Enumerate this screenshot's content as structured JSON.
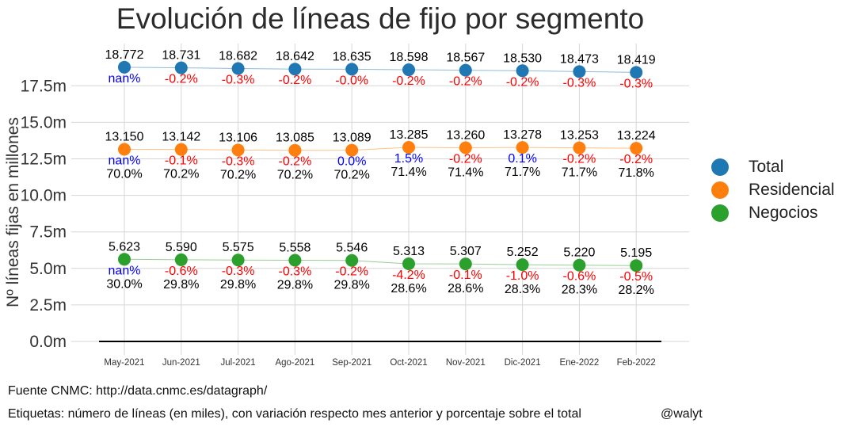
{
  "title": "Evolución de líneas de fijo por segmento",
  "footer": {
    "source": "Fuente CNMC: http://data.cnmc.es/datagraph/",
    "note": "Etiquetas: número de líneas (en miles), con variación respecto mes anterior y porcentaje sobre el total",
    "handle": "@walyt"
  },
  "colors": {
    "positive": "#0000ff",
    "negative": "#ff0000",
    "text": "#000000"
  },
  "chart_data": {
    "type": "line",
    "title": "Evolución de líneas de fijo por segmento",
    "xlabel": "",
    "ylabel": "Nº líneas fijas en millones",
    "categories": [
      "May-2021",
      "Jun-2021",
      "Jul-2021",
      "Ago-2021",
      "Sep-2021",
      "Oct-2021",
      "Nov-2021",
      "Dic-2021",
      "Ene-2022",
      "Feb-2022"
    ],
    "yticks": [
      "0.0m",
      "2.5m",
      "5.0m",
      "7.5m",
      "10.0m",
      "12.5m",
      "15.0m",
      "17.5m"
    ],
    "ylim": [
      -0.2,
      19.5
    ],
    "grid": true,
    "legend": "right",
    "series": [
      {
        "name": "Total",
        "color": "#1f77b4",
        "values": [
          18.772,
          18.731,
          18.682,
          18.642,
          18.635,
          18.598,
          18.567,
          18.53,
          18.473,
          18.419
        ],
        "value_labels": [
          "18.772",
          "18.731",
          "18.682",
          "18.642",
          "18.635",
          "18.598",
          "18.567",
          "18.530",
          "18.473",
          "18.419"
        ],
        "change_labels": [
          "nan%",
          "-0.2%",
          "-0.3%",
          "-0.2%",
          "-0.0%",
          "-0.2%",
          "-0.2%",
          "-0.2%",
          "-0.3%",
          "-0.3%"
        ],
        "share_labels": []
      },
      {
        "name": "Residencial",
        "color": "#ff7f0e",
        "values": [
          13.15,
          13.142,
          13.106,
          13.085,
          13.089,
          13.285,
          13.26,
          13.278,
          13.253,
          13.224
        ],
        "value_labels": [
          "13.150",
          "13.142",
          "13.106",
          "13.085",
          "13.089",
          "13.285",
          "13.260",
          "13.278",
          "13.253",
          "13.224"
        ],
        "change_labels": [
          "nan%",
          "-0.1%",
          "-0.3%",
          "-0.2%",
          "0.0%",
          "1.5%",
          "-0.2%",
          "0.1%",
          "-0.2%",
          "-0.2%"
        ],
        "share_labels": [
          "70.0%",
          "70.2%",
          "70.2%",
          "70.2%",
          "70.2%",
          "71.4%",
          "71.4%",
          "71.7%",
          "71.7%",
          "71.8%"
        ]
      },
      {
        "name": "Negocios",
        "color": "#2ca02c",
        "values": [
          5.623,
          5.59,
          5.575,
          5.558,
          5.546,
          5.313,
          5.307,
          5.252,
          5.22,
          5.195
        ],
        "value_labels": [
          "5.623",
          "5.590",
          "5.575",
          "5.558",
          "5.546",
          "5.313",
          "5.307",
          "5.252",
          "5.220",
          "5.195"
        ],
        "change_labels": [
          "nan%",
          "-0.6%",
          "-0.3%",
          "-0.3%",
          "-0.2%",
          "-4.2%",
          "-0.1%",
          "-1.0%",
          "-0.6%",
          "-0.5%"
        ],
        "share_labels": [
          "30.0%",
          "29.8%",
          "29.8%",
          "29.8%",
          "29.8%",
          "28.6%",
          "28.6%",
          "28.3%",
          "28.3%",
          "28.2%"
        ]
      }
    ]
  }
}
